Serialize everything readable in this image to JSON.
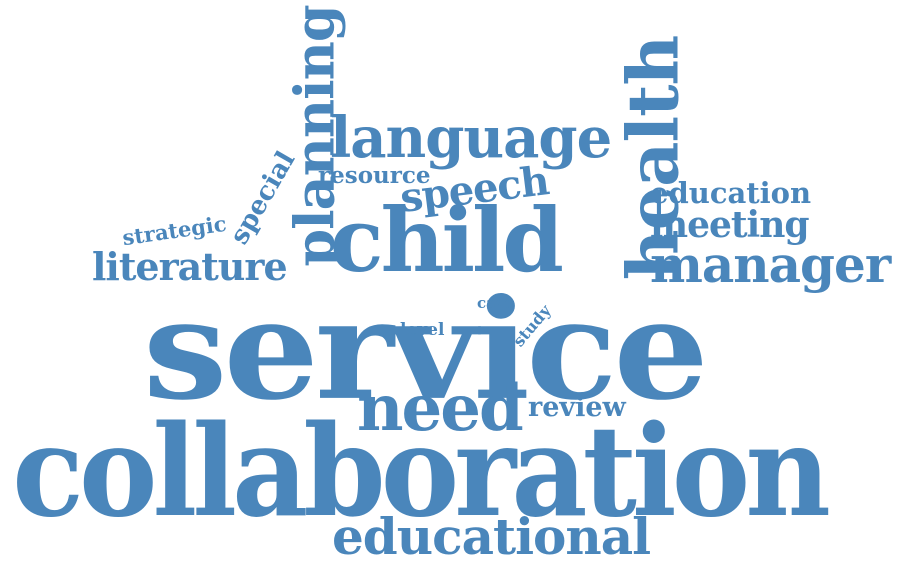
{
  "accent_color": "#4a86bb",
  "words": {
    "service": "service",
    "collaboration": "collaboration",
    "child": "child",
    "need": "need",
    "educational": "educational",
    "language": "language",
    "health": "health",
    "planning": "planning",
    "manager": "manager",
    "literature": "literature",
    "speech": "speech",
    "meeting": "meeting",
    "education": "education",
    "review": "review",
    "resource": "resource",
    "special": "special",
    "strategic": "strategic",
    "level": "level",
    "case": "case",
    "study": "study"
  }
}
